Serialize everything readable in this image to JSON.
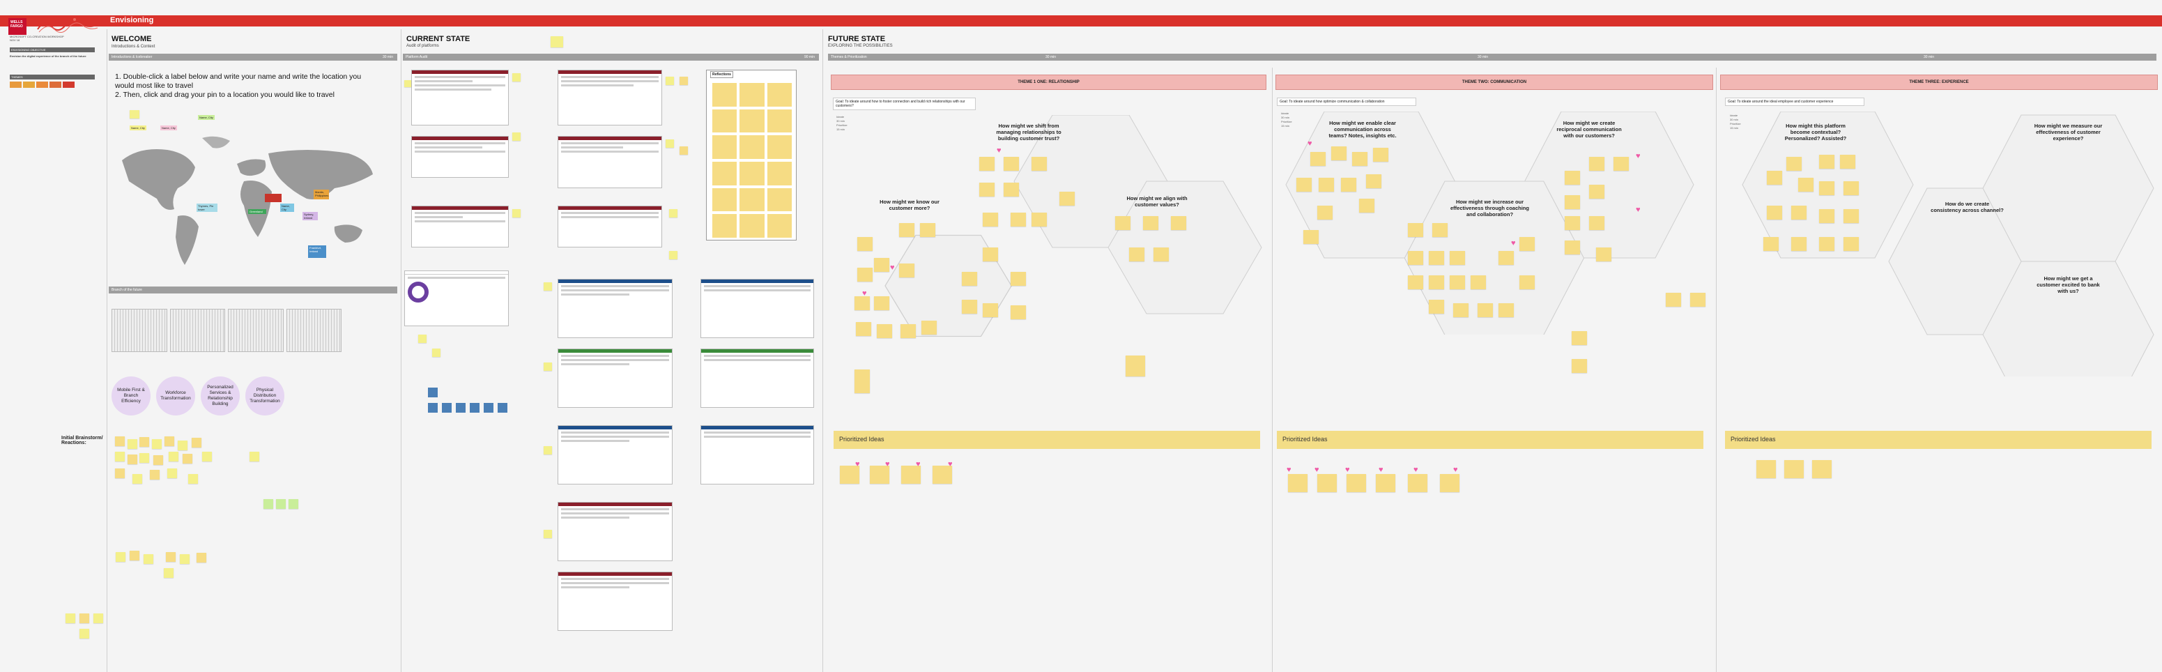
{
  "app": {
    "board_title": "Envisioning",
    "logo_text": "WELLS FARGO"
  },
  "left_panel": {
    "org": "MICROSOFT CO-CREATION WORKSHOP",
    "date": "NOV 18",
    "section1": "ENVISIONING OBJECTIVE",
    "objective": "Envision the digital experience of the branch of the future",
    "section2": "THEMES"
  },
  "colors": {
    "brand_red": "#d9312b",
    "theme_pink": "#f2b7b4",
    "sticky_yellow": "#f6dc84",
    "circle_lilac": "#e6d6f2",
    "swatches": [
      "#e89a3c",
      "#e6a63a",
      "#ea8a3a",
      "#dd6d3a",
      "#d33a2e"
    ]
  },
  "welcome": {
    "title": "WELCOME",
    "subtitle": "Introductions & Context",
    "bar1": "Introductions & Icebreaker",
    "bar1_time": "30 min",
    "instruction_1": "1. Double-click a label below and write your name and write the location you would most like to travel",
    "instruction_2": "2. Then, click and drag your pin to a location you would like to travel",
    "name_pill_1": "Name, City",
    "name_pill_2": "Name, City",
    "name_pill_3": "Name, City",
    "bar2": "Branch of the future",
    "circles": [
      "Mobile First & Branch Efficiency",
      "Workforce Transformation",
      "Personalized Services & Relationship Building",
      "Physical Distribution Transformation"
    ],
    "brainstorm_label": "Initial Brainstorm/ Reactions:"
  },
  "current_state": {
    "title": "CURRENT STATE",
    "subtitle": "Audit of platforms",
    "bar": "Platform Audit",
    "bar_time": "90 min",
    "reflections": "Reflections"
  },
  "future_state": {
    "title": "FUTURE STATE",
    "subtitle": "EXPLORING THE POSSIBILITIES",
    "bar": "Themes & Prioritization",
    "bar_times": [
      "30 min",
      "30 min",
      "30 min"
    ],
    "themes": [
      {
        "heading": "THEME 1 ONE: RELATIONSHIP",
        "goal": "Goal: To ideate around how to foster connection and build rich relationships with our customers?",
        "questions": [
          "How might we shift from managing relationships to building customer trust?",
          "How might we know our customer more?",
          "How might we align with customer values?"
        ],
        "prioritized": "Prioritized Ideas"
      },
      {
        "heading": "THEME TWO: COMMUNICATION",
        "goal": "Goal: To ideate around how optimize communication & collaboration",
        "questions": [
          "How might we enable clear communication across teams? Notes, insights etc.",
          "How might we create reciprocal communication with our customers?",
          "How might we increase our effectiveness through coaching and collaboration?"
        ],
        "prioritized": "Prioritized Ideas"
      },
      {
        "heading": "THEME THREE: EXPERIENCE",
        "goal": "Goal: To ideate around the ideal employee and customer experience",
        "questions": [
          "How might this platform become contextual? Personalized? Assisted?",
          "How might we measure our effectiveness of customer experience?",
          "How do we create consistency across channel?",
          "How might we get a customer excited to bank with us?"
        ],
        "prioritized": "Prioritized Ideas"
      }
    ],
    "timer_labels": [
      "Ideate",
      "Prioritize"
    ]
  }
}
